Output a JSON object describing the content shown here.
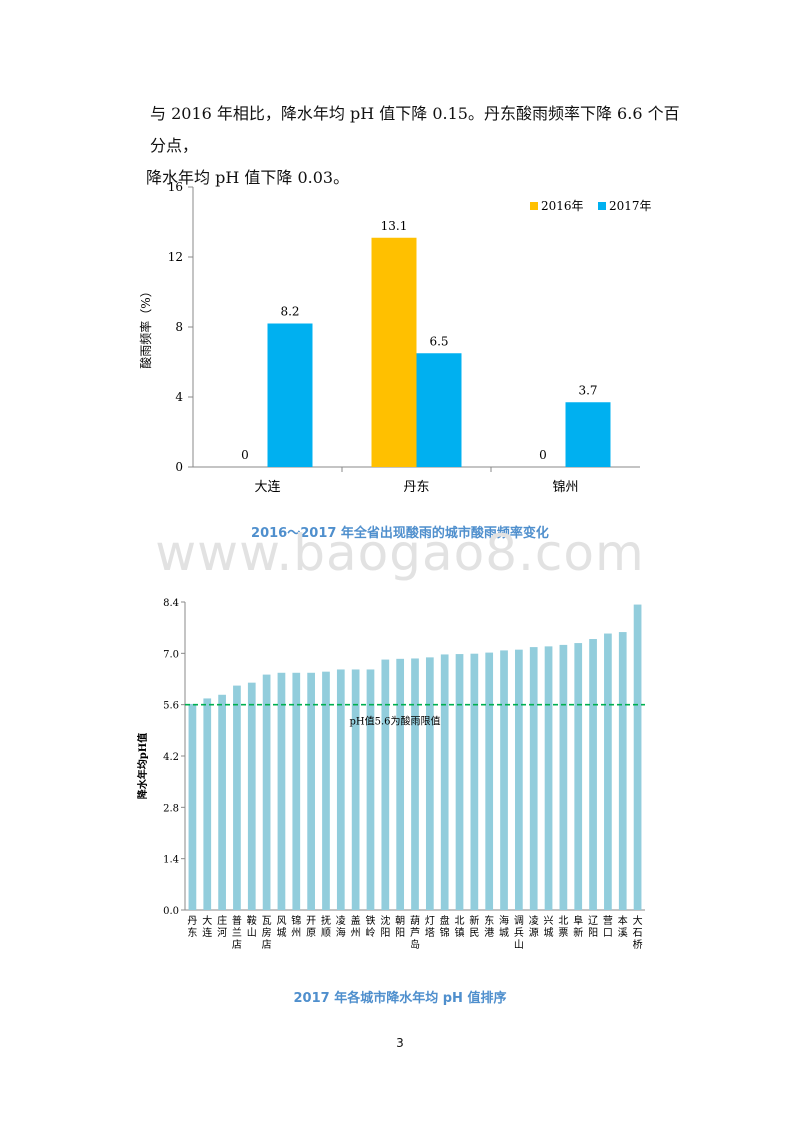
{
  "document": {
    "paragraph_line1": "与 2016 年相比，降水年均 pH 值下降 0.15。丹东酸雨频率下降 6.6 个百分点，",
    "paragraph_line2": "降水年均 pH 值下降 0.03。",
    "page_number": "3",
    "watermark": "www.baogao8.com"
  },
  "colors": {
    "series_2016": "#FFC000",
    "series_2017": "#00B0F0",
    "ph_bars": "#92CDDC",
    "threshold_line": "#00B050",
    "caption": "#4F8FCD"
  },
  "chart_data": [
    {
      "type": "bar",
      "title": "2016～2017 年全省出现酸雨的城市酸雨频率变化",
      "xlabel": "",
      "ylabel": "酸雨频率（%）",
      "categories": [
        "大连",
        "丹东",
        "锦州"
      ],
      "series": [
        {
          "name": "2016年",
          "values": [
            0,
            13.1,
            0
          ]
        },
        {
          "name": "2017年",
          "values": [
            8.2,
            6.5,
            3.7
          ]
        }
      ],
      "data_labels": [
        [
          "0",
          "13.1",
          "0"
        ],
        [
          "8.2",
          "6.5",
          "3.7"
        ]
      ],
      "ylim": [
        0,
        16
      ],
      "yticks": [
        "0",
        "4",
        "8",
        "12",
        "16"
      ],
      "legend": "top-right",
      "grid": false
    },
    {
      "type": "bar",
      "title": "2017 年各城市降水年均 pH 值排序",
      "xlabel": "",
      "ylabel": "降水年均pH值",
      "categories": [
        "丹东",
        "大连",
        "庄河",
        "普兰店",
        "鞍山",
        "瓦房店",
        "风城",
        "锦州",
        "开原",
        "抚顺",
        "凌海",
        "盖州",
        "铁岭",
        "沈阳",
        "朝阳",
        "葫芦岛",
        "灯塔",
        "盘锦",
        "北镇",
        "新民",
        "东港",
        "海城",
        "调兵山",
        "凌源",
        "兴城",
        "北票",
        "阜新",
        "辽阳",
        "营口",
        "本溪",
        "大石桥"
      ],
      "values": [
        5.62,
        5.77,
        5.87,
        6.12,
        6.2,
        6.42,
        6.47,
        6.47,
        6.47,
        6.5,
        6.56,
        6.56,
        6.56,
        6.83,
        6.85,
        6.86,
        6.89,
        6.97,
        6.98,
        6.99,
        7.02,
        7.08,
        7.1,
        7.17,
        7.19,
        7.23,
        7.28,
        7.39,
        7.54,
        7.58,
        8.33
      ],
      "ylim": [
        0,
        8.4
      ],
      "yticks": [
        "0.0",
        "1.4",
        "2.8",
        "4.2",
        "5.6",
        "7.0",
        "8.4"
      ],
      "threshold": {
        "value": 5.6,
        "label": "pH值5.6为酸雨限值"
      },
      "legend": "none",
      "grid": false
    }
  ]
}
